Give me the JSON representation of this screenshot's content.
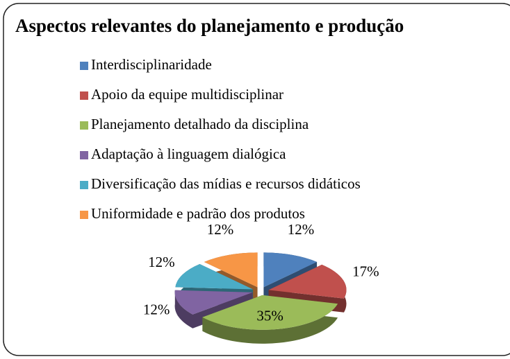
{
  "chart_data": {
    "type": "pie",
    "title": "Aspectos relevantes do planejamento e produção",
    "categories": [
      "Interdisciplinaridade",
      "Apoio da equipe multidisciplinar",
      "Planejamento detalhado da disciplina",
      "Adaptação à linguagem dialógica",
      "Diversificação das mídias e recursos didáticos",
      "Uniformidade e padrão dos produtos"
    ],
    "values": [
      12,
      17,
      35,
      12,
      12,
      12
    ],
    "value_labels": [
      "12%",
      "17%",
      "35%",
      "12%",
      "12%",
      "12%"
    ],
    "colors": [
      "#4f81bd",
      "#c0504d",
      "#9bbb59",
      "#8064a2",
      "#4bacc6",
      "#f79646"
    ],
    "legend": "top"
  }
}
